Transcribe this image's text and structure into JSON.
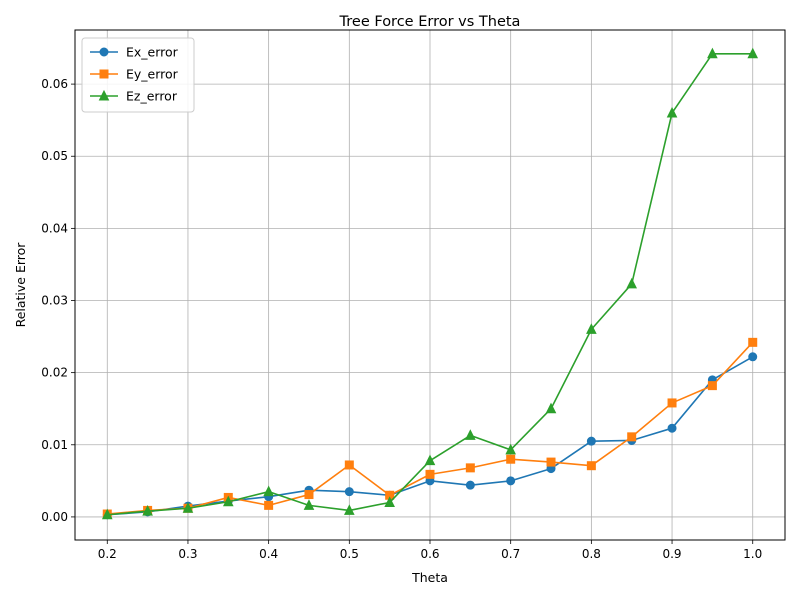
{
  "chart_data": {
    "type": "line",
    "title": "Tree Force Error vs Theta",
    "xlabel": "Theta",
    "ylabel": "Relative Error",
    "x": [
      0.2,
      0.25,
      0.3,
      0.35,
      0.4,
      0.45,
      0.5,
      0.55,
      0.6,
      0.65,
      0.7,
      0.75,
      0.8,
      0.85,
      0.9,
      0.95,
      1.0
    ],
    "xlim": [
      0.16,
      1.04
    ],
    "ylim": [
      -0.0032,
      0.0675
    ],
    "xticks": [
      0.2,
      0.3,
      0.4,
      0.5,
      0.6,
      0.7,
      0.8,
      0.9,
      1.0
    ],
    "xtick_labels": [
      "0.2",
      "0.3",
      "0.4",
      "0.5",
      "0.6",
      "0.7",
      "0.8",
      "0.9",
      "1.0"
    ],
    "yticks": [
      0.0,
      0.01,
      0.02,
      0.03,
      0.04,
      0.05,
      0.06
    ],
    "ytick_labels": [
      "0.00",
      "0.01",
      "0.02",
      "0.03",
      "0.04",
      "0.05",
      "0.06"
    ],
    "grid": true,
    "legend_position": "top-left",
    "series": [
      {
        "name": "Ex_error",
        "color": "#1f77b4",
        "marker": "circle",
        "values": [
          0.0003,
          0.0007,
          0.0015,
          0.0022,
          0.0028,
          0.0037,
          0.0035,
          0.003,
          0.005,
          0.0044,
          0.005,
          0.0067,
          0.0105,
          0.0106,
          0.0123,
          0.019,
          0.0222
        ]
      },
      {
        "name": "Ey_error",
        "color": "#ff7f0e",
        "marker": "square",
        "values": [
          0.0004,
          0.0009,
          0.0012,
          0.0027,
          0.0016,
          0.0031,
          0.0072,
          0.003,
          0.0059,
          0.0068,
          0.008,
          0.0076,
          0.0071,
          0.0111,
          0.0158,
          0.0182,
          0.0242
        ]
      },
      {
        "name": "Ez_error",
        "color": "#2ca02c",
        "marker": "triangle",
        "values": [
          0.0003,
          0.0008,
          0.0012,
          0.0021,
          0.0035,
          0.0016,
          0.0009,
          0.002,
          0.0078,
          0.0113,
          0.0093,
          0.015,
          0.026,
          0.0323,
          0.056,
          0.0642,
          0.0642
        ]
      }
    ]
  }
}
